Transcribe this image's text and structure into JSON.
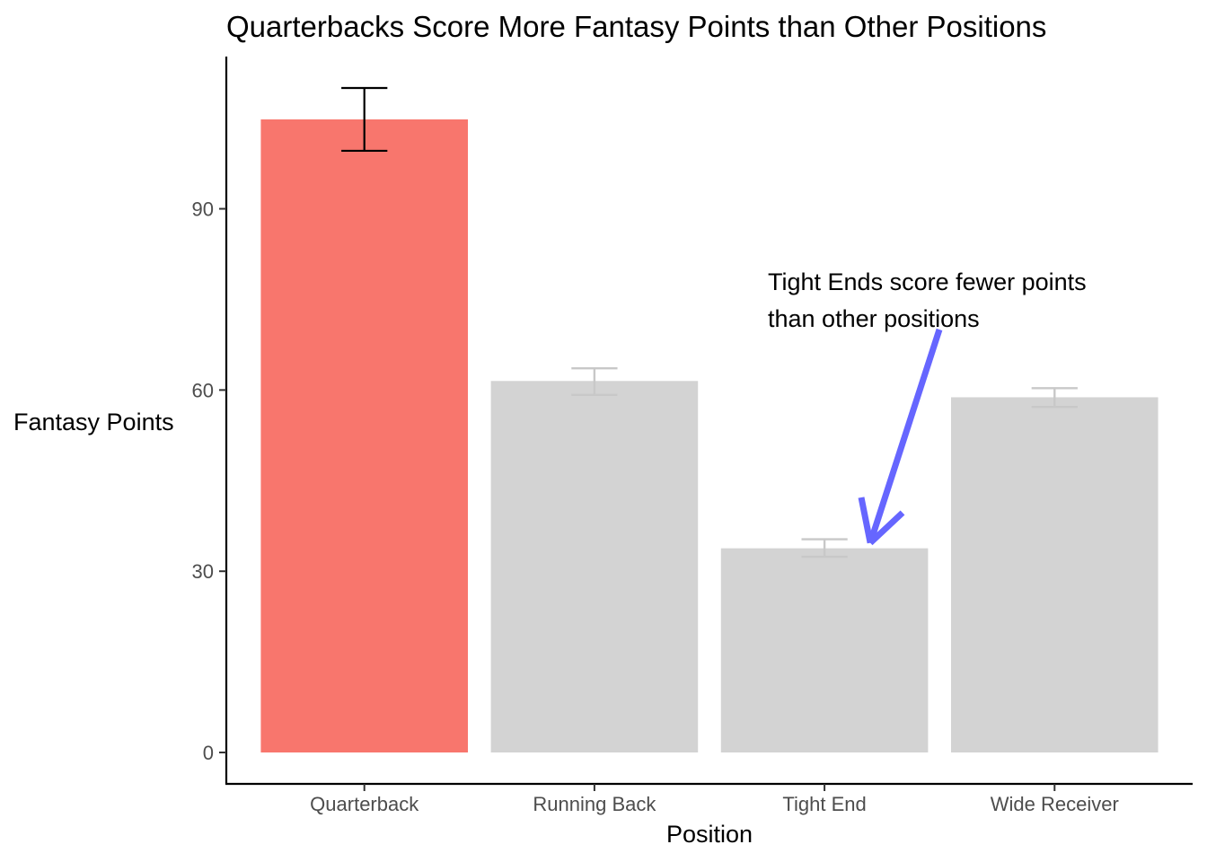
{
  "chart_data": {
    "type": "bar",
    "title": "Quarterbacks Score More Fantasy Points than Other Positions",
    "xlabel": "Position",
    "ylabel": "Fantasy Points",
    "categories": [
      "Quarterback",
      "Running Back",
      "Tight End",
      "Wide Receiver"
    ],
    "values": [
      104.8,
      61.5,
      33.8,
      58.8
    ],
    "error_low": [
      99.6,
      59.2,
      32.4,
      57.2
    ],
    "error_high": [
      110.0,
      63.6,
      35.3,
      60.3
    ],
    "highlight": "Quarterback",
    "ylim": [
      -5.2,
      115.2
    ],
    "yticks": [
      0,
      30,
      60,
      90
    ],
    "grid": false,
    "legend": "none",
    "annotation": {
      "lines": [
        "Tight Ends score fewer points",
        "than other positions"
      ],
      "points_to": "Tight End"
    }
  },
  "colors": {
    "highlight_bar": "#F8766D",
    "other_bar": "#D3D3D3",
    "highlight_errorbar": "#000000",
    "other_errorbar": "#C8C8C8",
    "arrow": "#6666FF",
    "axis": "#000000",
    "tick_label": "#4D4D4D"
  }
}
